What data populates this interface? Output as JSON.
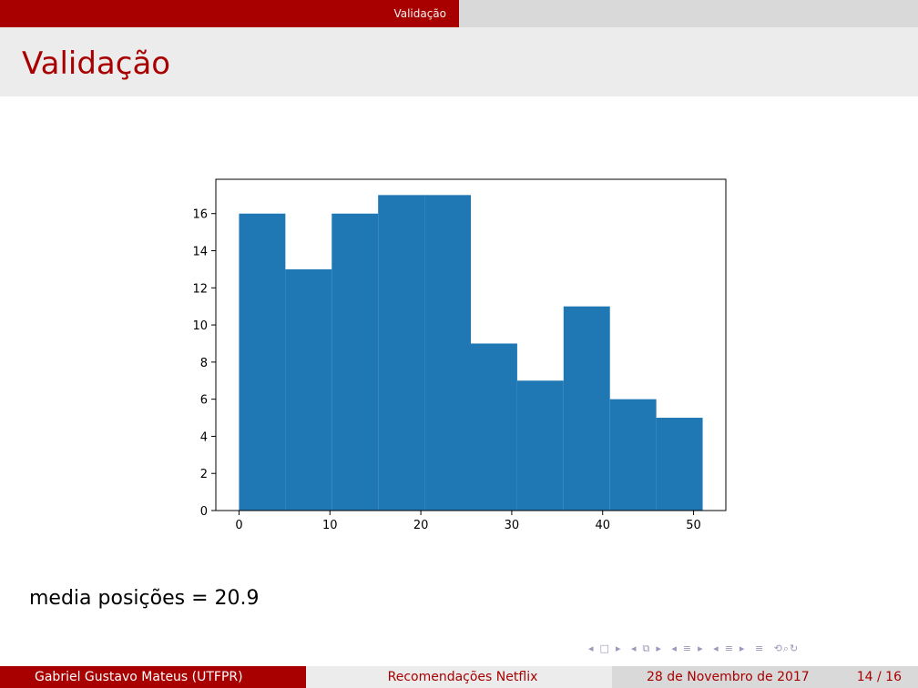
{
  "header": {
    "section": "Validação"
  },
  "frame": {
    "title": "Validação"
  },
  "caption": "media posições = 20.9",
  "footer": {
    "author": "Gabriel Gustavo Mateus  (UTFPR)",
    "talk_title": "Recomendações Netflix",
    "date": "28 de Novembro de 2017",
    "page": "14 / 16"
  },
  "nav_icons": [
    "nav-prev-frame-icon",
    "nav-next-frame-icon",
    "nav-prev-subsection-icon",
    "nav-next-subsection-icon",
    "nav-prev-section-icon",
    "nav-next-section-icon",
    "nav-toc-icon",
    "nav-search-icon"
  ],
  "colors": {
    "accent": "#a80000",
    "bar": "#1f77b4"
  },
  "chart_data": {
    "type": "bar",
    "histogram": true,
    "bins": [
      {
        "x0": 0,
        "x1": 5.1,
        "count": 16
      },
      {
        "x0": 5.1,
        "x1": 10.2,
        "count": 13
      },
      {
        "x0": 10.2,
        "x1": 15.3,
        "count": 16
      },
      {
        "x0": 15.3,
        "x1": 20.4,
        "count": 17
      },
      {
        "x0": 20.4,
        "x1": 25.5,
        "count": 17
      },
      {
        "x0": 25.5,
        "x1": 30.6,
        "count": 9
      },
      {
        "x0": 30.6,
        "x1": 35.7,
        "count": 7
      },
      {
        "x0": 35.7,
        "x1": 40.8,
        "count": 11
      },
      {
        "x0": 40.8,
        "x1": 45.9,
        "count": 6
      },
      {
        "x0": 45.9,
        "x1": 51,
        "count": 5
      }
    ],
    "xlim": [
      -2.55,
      53.55
    ],
    "ylim": [
      0,
      17.85
    ],
    "xticks": [
      0,
      10,
      20,
      30,
      40,
      50
    ],
    "yticks": [
      0,
      2,
      4,
      6,
      8,
      10,
      12,
      14,
      16
    ],
    "title": "",
    "xlabel": "",
    "ylabel": ""
  }
}
